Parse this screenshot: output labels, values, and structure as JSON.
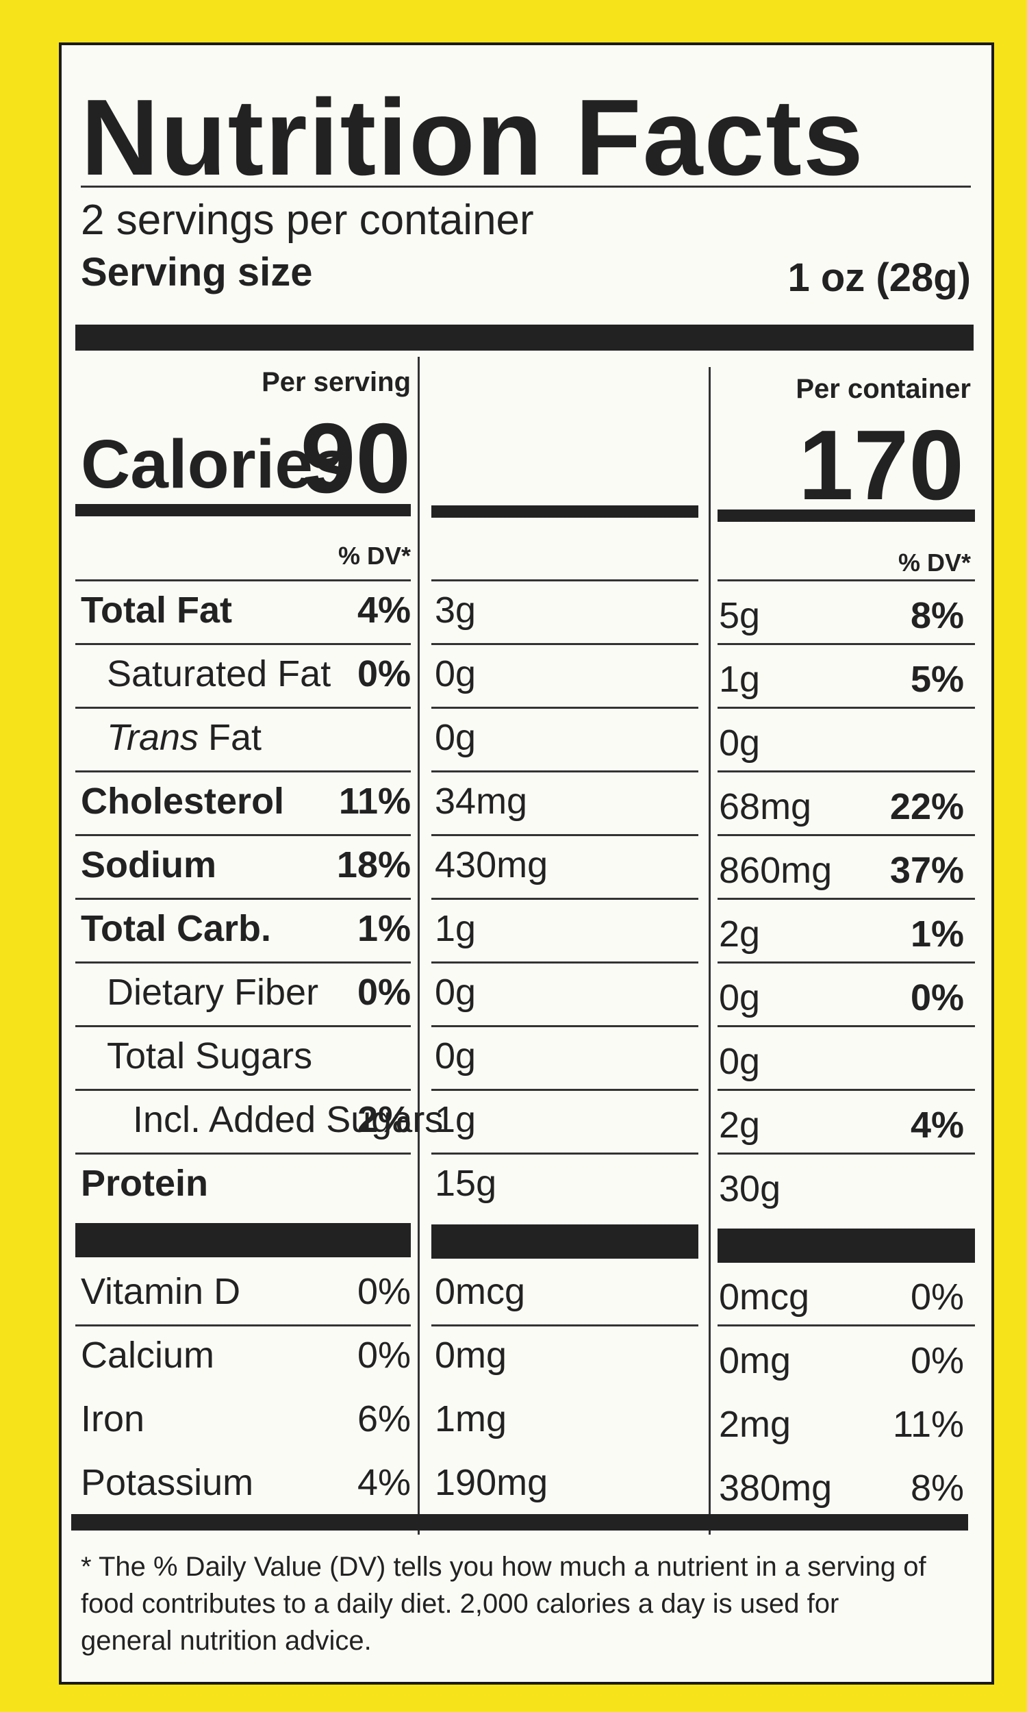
{
  "header": {
    "title": "Nutrition Facts",
    "servings": "2 servings per container",
    "serving_size_label": "Serving size",
    "serving_size_value": "1 oz (28g)"
  },
  "columns": {
    "per_serving": "Per serving",
    "per_container": "Per container"
  },
  "calories": {
    "label": "Calories",
    "per_serving": "90",
    "per_container": "170"
  },
  "dv_header": "% DV*",
  "nutrients": [
    {
      "name": "Total Fat",
      "bold": true,
      "indent": 0,
      "serving_amount": "3g",
      "serving_dv": "4%",
      "container_amount": "5g",
      "container_dv": "8%"
    },
    {
      "name": "Saturated Fat",
      "bold": false,
      "indent": 1,
      "serving_amount": "0g",
      "serving_dv": "0%",
      "container_amount": "1g",
      "container_dv": "5%"
    },
    {
      "name_italic": "Trans",
      "name": "Fat",
      "bold": false,
      "indent": 1,
      "serving_amount": "0g",
      "container_amount": "0g"
    },
    {
      "name": "Cholesterol",
      "bold": true,
      "indent": 0,
      "serving_amount": "34mg",
      "serving_dv": "11%",
      "container_amount": "68mg",
      "container_dv": "22%"
    },
    {
      "name": "Sodium",
      "bold": true,
      "indent": 0,
      "serving_amount": "430mg",
      "serving_dv": "18%",
      "container_amount": "860mg",
      "container_dv": "37%"
    },
    {
      "name": "Total Carb.",
      "bold": true,
      "indent": 0,
      "serving_amount": "1g",
      "serving_dv": "1%",
      "container_amount": "2g",
      "container_dv": "1%"
    },
    {
      "name": "Dietary Fiber",
      "bold": false,
      "indent": 1,
      "serving_amount": "0g",
      "serving_dv": "0%",
      "container_amount": "0g",
      "container_dv": "0%"
    },
    {
      "name": "Total Sugars",
      "bold": false,
      "indent": 1,
      "serving_amount": "0g",
      "container_amount": "0g"
    },
    {
      "name": "Incl. Added Sugars",
      "bold": false,
      "indent": 2,
      "serving_amount": "1g",
      "serving_dv": "2%",
      "container_amount": "2g",
      "container_dv": "4%"
    },
    {
      "name": "Protein",
      "bold": true,
      "indent": 0,
      "serving_amount": "15g",
      "container_amount": "30g"
    }
  ],
  "vitamins": [
    {
      "name": "Vitamin D",
      "serving_amount": "0mcg",
      "serving_dv": "0%",
      "container_amount": "0mcg",
      "container_dv": "0%"
    },
    {
      "name": "Calcium",
      "serving_amount": "0mg",
      "serving_dv": "0%",
      "container_amount": "0mg",
      "container_dv": "0%"
    },
    {
      "name": "Iron",
      "serving_amount": "1mg",
      "serving_dv": "6%",
      "container_amount": "2mg",
      "container_dv": "11%"
    },
    {
      "name": "Potassium",
      "serving_amount": "190mg",
      "serving_dv": "4%",
      "container_amount": "380mg",
      "container_dv": "8%"
    }
  ],
  "footnote": "* The % Daily Value (DV) tells you how much a nutrient in a serving of food contributes to a daily diet. 2,000 calories a day is used for general nutrition advice."
}
